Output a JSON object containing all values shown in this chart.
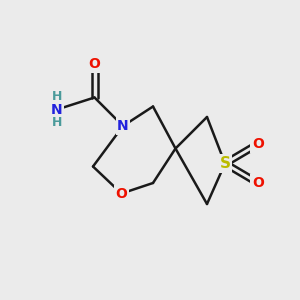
{
  "bg_color": "#ebebeb",
  "bond_color": "#1a1a1a",
  "N_color": "#2222dd",
  "O_color": "#ee1100",
  "S_color": "#bbbb00",
  "NH_color": "#4a9a9a",
  "lw": 1.8,
  "xlim": [
    0,
    10
  ],
  "ylim": [
    0,
    10
  ]
}
